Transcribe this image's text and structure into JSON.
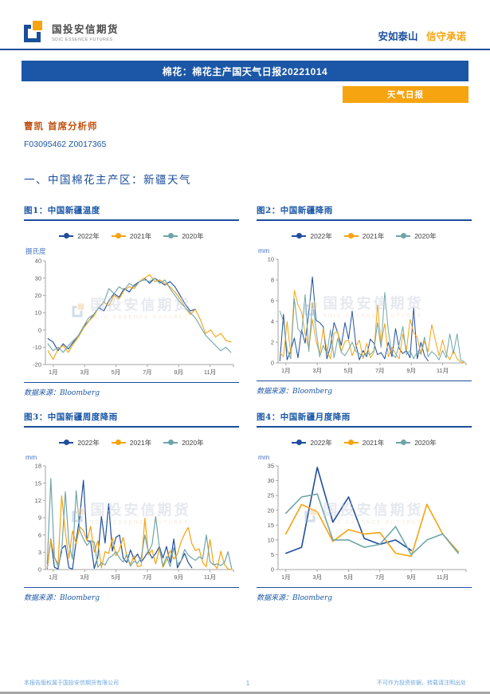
{
  "header": {
    "logo_title": "国投安信期货",
    "logo_subtitle": "SDIC ESSENCE FUTURES",
    "slogan_blue": "安如泰山",
    "slogan_orange": "信守承诺"
  },
  "banner": {
    "title": "棉花：棉花主产国天气日报20221014"
  },
  "badge": {
    "label": "天气日报"
  },
  "analyst": {
    "name_title": "曹凯 首席分析师",
    "codes": "F03095462 Z0017365"
  },
  "section": {
    "title": "一、中国棉花主产区：新疆天气"
  },
  "watermark": {
    "title": "国投安信期货",
    "subtitle": "SDIC ESSENCE FUTURES"
  },
  "source_label": "数据来源：Bloomberg",
  "footer": {
    "left": "本报告版权属于国投安信期货有限公司",
    "page": "1",
    "right": "不可作为投资依据，转载请注明出处"
  },
  "colors": {
    "navy": "#1B4E9B",
    "banner_blue": "#1B57A6",
    "orange": "#F6A410",
    "analyst_orange": "#C0500F"
  },
  "legend": [
    {
      "name": "2022年",
      "color": "#1F4E9C"
    },
    {
      "name": "2021年",
      "color": "#F5A30F"
    },
    {
      "name": "2020年",
      "color": "#6FA5A8"
    }
  ],
  "chart_data": [
    {
      "type": "line",
      "title": "图1：中国新疆温度",
      "ylabel": "摄氏度",
      "ylim": [
        -20,
        40
      ],
      "yticks": [
        -20,
        -10,
        0,
        10,
        20,
        30,
        40
      ],
      "xticklabels": [
        "1月",
        "3月",
        "5月",
        "7月",
        "9月",
        "11月"
      ],
      "x_sampling": "daily series, values sampled ~every 10 days, Jan–Dec",
      "legend_position": "top",
      "series": [
        {
          "name": "2022年",
          "color": "#1F4E9C",
          "values": [
            -5,
            -7,
            -12,
            -8,
            -11,
            -7,
            -4,
            2,
            5,
            9,
            13,
            11,
            17,
            21,
            19,
            24,
            22,
            26,
            28,
            30,
            27,
            30,
            28,
            26,
            28,
            25,
            20,
            15,
            11,
            12,
            null,
            null,
            null,
            null,
            null,
            null,
            null
          ]
        },
        {
          "name": "2021年",
          "color": "#F5A30F",
          "values": [
            -12,
            -17,
            -11,
            -9,
            -13,
            -8,
            -4,
            1,
            5,
            8,
            13,
            16,
            14,
            20,
            18,
            23,
            25,
            24,
            28,
            30,
            32,
            28,
            29,
            27,
            25,
            22,
            18,
            13,
            9,
            12,
            6,
            -2,
            0,
            -4,
            -2,
            -6,
            -7
          ]
        },
        {
          "name": "2020年",
          "color": "#6FA5A8",
          "values": [
            -8,
            -12,
            -10,
            -13,
            -9,
            -6,
            -3,
            2,
            7,
            9,
            13,
            16,
            24,
            21,
            25,
            23,
            27,
            25,
            28,
            29,
            28,
            30,
            27,
            29,
            24,
            20,
            16,
            13,
            10,
            7,
            2,
            -3,
            -6,
            -9,
            -12,
            -10,
            -13
          ]
        }
      ]
    },
    {
      "type": "line",
      "title": "图2：中国新疆降雨",
      "ylabel": "mm",
      "ylim": [
        0,
        10
      ],
      "yticks": [
        0,
        2,
        4,
        6,
        8,
        10
      ],
      "xticklabels": [
        "1月",
        "3月",
        "5月",
        "7月",
        "9月",
        "11月"
      ],
      "x_sampling": "daily rainfall spikes, approximated weekly, Jan–Dec",
      "legend_position": "top",
      "series": [
        {
          "name": "2022年",
          "color": "#1F4E9C",
          "values": [
            0.2,
            4.7,
            0.3,
            1.2,
            2.4,
            0.5,
            3.2,
            1.9,
            4.9,
            8.3,
            4.1,
            3.9,
            3.5,
            0.4,
            1.6,
            3.9,
            2.9,
            1.7,
            3.9,
            2.3,
            5.0,
            1.8,
            0.3,
            1.2,
            0.6,
            2.3,
            1.9,
            0.8,
            1.0,
            0.4,
            2.0,
            0.6,
            3.3,
            1.4,
            0.9,
            1.2,
            0.5,
            5.3,
            0.4,
            2.0,
            0.7,
            0.2,
            null,
            null,
            null,
            null,
            null,
            null,
            null,
            null,
            null,
            null
          ]
        },
        {
          "name": "2021年",
          "color": "#F5A30F",
          "values": [
            1.0,
            0.6,
            4.0,
            0.8,
            7.0,
            5.6,
            4.9,
            2.8,
            1.4,
            4.2,
            2.1,
            0.9,
            3.3,
            1.2,
            0.4,
            2.9,
            3.0,
            1.1,
            2.1,
            2.2,
            0.7,
            1.6,
            2.2,
            0.4,
            1.9,
            0.5,
            1.0,
            5.6,
            1.8,
            3.8,
            0.6,
            1.5,
            0.9,
            0.4,
            2.8,
            1.2,
            4.2,
            2.9,
            2.5,
            0.8,
            2.1,
            1.1,
            3.7,
            2.2,
            0.7,
            2.2,
            0.9,
            0.3,
            1.2,
            0.4,
            0.1,
            0.0
          ]
        },
        {
          "name": "2020年",
          "color": "#6FA5A8",
          "values": [
            5.0,
            4.0,
            1.3,
            0.4,
            6.2,
            3.3,
            2.8,
            6.6,
            1.1,
            5.8,
            3.2,
            0.6,
            1.7,
            0.9,
            3.2,
            0.5,
            2.4,
            1.0,
            0.7,
            1.3,
            2.0,
            1.1,
            0.9,
            0.6,
            1.0,
            0.8,
            1.2,
            3.9,
            1.5,
            6.8,
            3.1,
            0.9,
            0.5,
            1.8,
            3.5,
            0.8,
            1.2,
            0.4,
            1.1,
            0.9,
            2.5,
            0.6,
            1.1,
            0.8,
            0.3,
            1.2,
            0.5,
            2.8,
            0.9,
            2.8,
            0.3,
            0.1
          ]
        }
      ]
    },
    {
      "type": "line",
      "title": "图3：中国新疆周度降雨",
      "ylabel": "mm",
      "ylim": [
        0,
        18
      ],
      "yticks": [
        0,
        3,
        6,
        9,
        12,
        15,
        18
      ],
      "xticklabels": [
        "1月",
        "3月",
        "5月",
        "7月",
        "9月",
        "11月"
      ],
      "x_sampling": "weekly rainfall, 52 weeks Jan–Dec",
      "legend_position": "top",
      "series": [
        {
          "name": "2022年",
          "color": "#1F4E9C",
          "values": [
            0.2,
            5.3,
            0.4,
            0.1,
            3.6,
            4.2,
            0.3,
            0.1,
            5.0,
            9.2,
            15.5,
            5.0,
            4.9,
            0.2,
            2.2,
            9.2,
            4.6,
            11.4,
            3.2,
            5.6,
            6.0,
            2.0,
            1.2,
            3.4,
            1.8,
            2.7,
            1.3,
            2.2,
            3.2,
            2.0,
            2.8,
            4.0,
            2.0,
            4.0,
            1.2,
            5.3,
            0.3,
            1.5,
            2.8,
            1.2,
            0.3,
            null,
            null,
            null,
            null,
            null,
            null,
            null,
            null,
            null,
            null,
            null
          ]
        },
        {
          "name": "2021年",
          "color": "#F5A30F",
          "values": [
            0.3,
            5.2,
            2.1,
            1.0,
            12.8,
            6.5,
            2.0,
            6.7,
            4.5,
            7.4,
            6.8,
            5.0,
            7.5,
            3.0,
            5.0,
            0.3,
            3.1,
            2.8,
            5.5,
            2.4,
            3.5,
            5.6,
            2.3,
            0.9,
            2.4,
            0.5,
            0.7,
            8.9,
            2.6,
            3.4,
            1.0,
            3.7,
            0.4,
            1.6,
            3.3,
            1.8,
            2.7,
            4.8,
            6.2,
            7.3,
            4.5,
            3.3,
            3.6,
            1.2,
            0.5,
            5.2,
            1.0,
            0.2,
            3.2,
            0.9,
            0.1,
            0.0
          ]
        },
        {
          "name": "2020年",
          "color": "#6FA5A8",
          "values": [
            1.0,
            15.8,
            2.2,
            0.5,
            3.0,
            13.5,
            4.5,
            1.8,
            13.7,
            6.8,
            5.3,
            4.2,
            5.0,
            4.8,
            0.4,
            1.2,
            0.8,
            2.0,
            2.4,
            3.1,
            2.0,
            1.3,
            2.6,
            0.6,
            1.5,
            1.1,
            2.1,
            6.0,
            3.0,
            4.4,
            9.2,
            3.9,
            0.6,
            2.3,
            0.5,
            3.8,
            0.9,
            1.5,
            3.5,
            2.5,
            2.0,
            1.6,
            2.2,
            1.9,
            6.0,
            1.4,
            0.8,
            1.0,
            0.7,
            1.2,
            3.1,
            0.2
          ]
        }
      ]
    },
    {
      "type": "line",
      "title": "图4：中国新疆月度降雨",
      "ylabel": "mm",
      "ylim": [
        0,
        35
      ],
      "yticks": [
        0,
        5,
        10,
        15,
        20,
        25,
        30,
        35
      ],
      "xticklabels": [
        "1月",
        "3月",
        "5月",
        "7月",
        "9月",
        "11月"
      ],
      "x_sampling": "monthly rainfall totals, Jan–Dec",
      "legend_position": "top",
      "series": [
        {
          "name": "2022年",
          "color": "#1F4E9C",
          "values": [
            5.5,
            7.5,
            34.5,
            16,
            24.5,
            10.5,
            8.5,
            10,
            6.5,
            null,
            null,
            null
          ]
        },
        {
          "name": "2021年",
          "color": "#F5A30F",
          "values": [
            12,
            22,
            19.5,
            9.5,
            13.5,
            12,
            12.5,
            5.5,
            4.5,
            22,
            12,
            6
          ]
        },
        {
          "name": "2020年",
          "color": "#6FA5A8",
          "values": [
            19,
            24.5,
            25.5,
            10,
            10,
            7.5,
            8.5,
            14.5,
            5,
            10,
            12,
            5.5
          ]
        }
      ]
    }
  ]
}
